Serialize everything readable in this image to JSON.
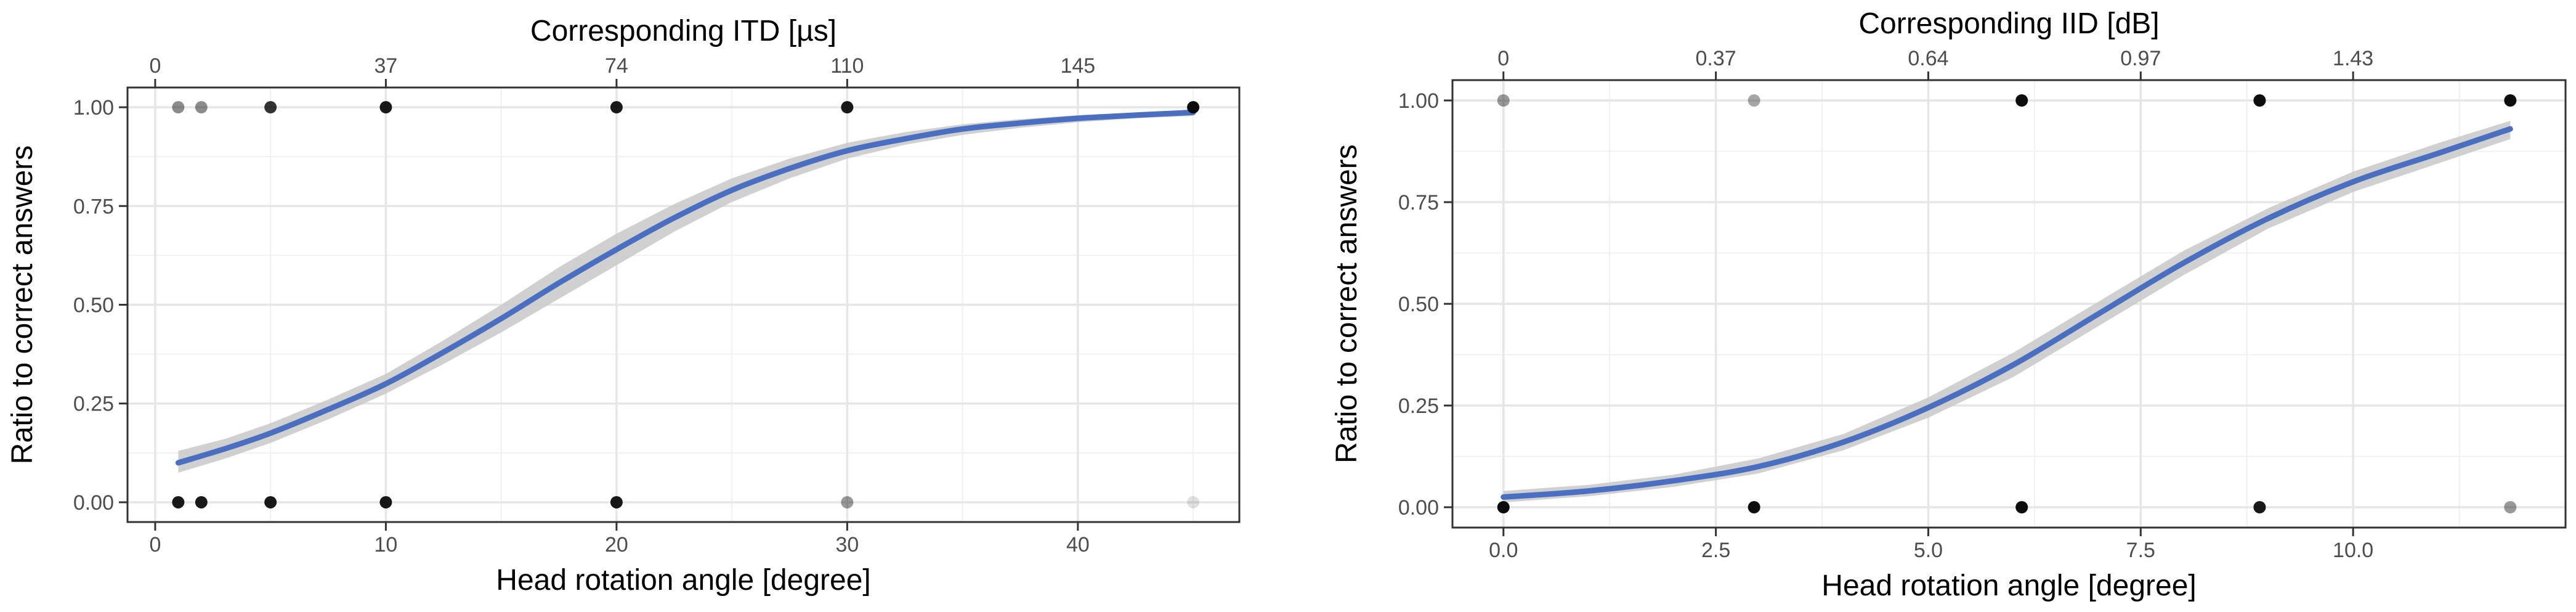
{
  "chart_data": [
    {
      "type": "scatter",
      "title": "",
      "xlabel": "Head rotation angle [degree]",
      "ylabel": "Ratio to correct answers",
      "top_axis_label": "Corresponding ITD [µs]",
      "xlim": [
        -1.2,
        47.0
      ],
      "ylim": [
        -0.05,
        1.05
      ],
      "x_ticks": [
        0,
        10,
        20,
        30,
        40
      ],
      "x_tick_labels": [
        "0",
        "10",
        "20",
        "30",
        "40"
      ],
      "top_ticks": [
        0,
        10,
        20,
        30,
        40
      ],
      "top_tick_labels": [
        "0",
        "37",
        "74",
        "110",
        "145"
      ],
      "y_ticks": [
        0,
        0.25,
        0.5,
        0.75,
        1.0
      ],
      "y_tick_labels": [
        "0.00",
        "0.25",
        "0.50",
        "0.75",
        "1.00"
      ],
      "grid": true,
      "points": [
        {
          "x": 1,
          "y": 1,
          "opacity": 0.45
        },
        {
          "x": 2,
          "y": 1,
          "opacity": 0.45
        },
        {
          "x": 5,
          "y": 1,
          "opacity": 0.8
        },
        {
          "x": 10,
          "y": 1,
          "opacity": 0.9
        },
        {
          "x": 20,
          "y": 1,
          "opacity": 0.9
        },
        {
          "x": 30,
          "y": 1,
          "opacity": 0.9
        },
        {
          "x": 45,
          "y": 1,
          "opacity": 0.95
        },
        {
          "x": 1,
          "y": 0,
          "opacity": 0.9
        },
        {
          "x": 2,
          "y": 0,
          "opacity": 0.9
        },
        {
          "x": 5,
          "y": 0,
          "opacity": 0.9
        },
        {
          "x": 10,
          "y": 0,
          "opacity": 0.9
        },
        {
          "x": 20,
          "y": 0,
          "opacity": 0.9
        },
        {
          "x": 30,
          "y": 0,
          "opacity": 0.4
        },
        {
          "x": 45,
          "y": 0,
          "opacity": 0.12
        }
      ],
      "fit_curve": {
        "x": [
          1,
          3,
          5,
          7.5,
          10,
          12.5,
          15,
          17.5,
          20,
          22.5,
          25,
          27.5,
          30,
          32.5,
          35,
          37.5,
          40,
          42.5,
          45
        ],
        "y": [
          0.1,
          0.135,
          0.175,
          0.235,
          0.3,
          0.38,
          0.465,
          0.555,
          0.64,
          0.72,
          0.79,
          0.845,
          0.89,
          0.92,
          0.945,
          0.96,
          0.972,
          0.98,
          0.987
        ],
        "ci_lower": [
          0.075,
          0.11,
          0.15,
          0.21,
          0.275,
          0.35,
          0.43,
          0.515,
          0.6,
          0.685,
          0.76,
          0.82,
          0.87,
          0.905,
          0.93,
          0.948,
          0.962,
          0.972,
          0.978
        ],
        "ci_upper": [
          0.13,
          0.16,
          0.2,
          0.26,
          0.325,
          0.41,
          0.5,
          0.595,
          0.68,
          0.755,
          0.82,
          0.87,
          0.91,
          0.937,
          0.957,
          0.97,
          0.98,
          0.987,
          0.993
        ]
      },
      "colors": {
        "line": "#4a6fc1",
        "band": "#c8c8c8",
        "point": "#000000"
      }
    },
    {
      "type": "scatter",
      "title": "",
      "xlabel": "Head rotation angle [degree]",
      "ylabel": "Ratio to correct answers",
      "top_axis_label": "Corresponding IID [dB]",
      "xlim": [
        -0.6,
        12.5
      ],
      "ylim": [
        -0.05,
        1.05
      ],
      "x_ticks": [
        0,
        2.5,
        5.0,
        7.5,
        10.0
      ],
      "x_tick_labels": [
        "0.0",
        "2.5",
        "5.0",
        "7.5",
        "10.0"
      ],
      "top_ticks": [
        0,
        2.5,
        5.0,
        7.5,
        10.0
      ],
      "top_tick_labels": [
        "0",
        "0.37",
        "0.64",
        "0.97",
        "1.43"
      ],
      "y_ticks": [
        0,
        0.25,
        0.5,
        0.75,
        1.0
      ],
      "y_tick_labels": [
        "0.00",
        "0.25",
        "0.50",
        "0.75",
        "1.00"
      ],
      "grid": true,
      "points": [
        {
          "x": 0,
          "y": 1,
          "opacity": 0.4
        },
        {
          "x": 2.95,
          "y": 1,
          "opacity": 0.35
        },
        {
          "x": 6.1,
          "y": 1,
          "opacity": 0.95
        },
        {
          "x": 8.9,
          "y": 1,
          "opacity": 0.95
        },
        {
          "x": 11.85,
          "y": 1,
          "opacity": 0.95
        },
        {
          "x": 0,
          "y": 0,
          "opacity": 0.95
        },
        {
          "x": 2.95,
          "y": 0,
          "opacity": 0.95
        },
        {
          "x": 6.1,
          "y": 0,
          "opacity": 0.95
        },
        {
          "x": 8.9,
          "y": 0,
          "opacity": 0.9
        },
        {
          "x": 11.85,
          "y": 0,
          "opacity": 0.4
        }
      ],
      "fit_curve": {
        "x": [
          0,
          1,
          2,
          3,
          4,
          5,
          6,
          7,
          8,
          9,
          10,
          11,
          11.85
        ],
        "y": [
          0.025,
          0.04,
          0.065,
          0.1,
          0.16,
          0.245,
          0.35,
          0.475,
          0.6,
          0.71,
          0.8,
          0.87,
          0.93
        ],
        "ci_lower": [
          0.012,
          0.027,
          0.05,
          0.083,
          0.14,
          0.22,
          0.32,
          0.445,
          0.57,
          0.685,
          0.775,
          0.845,
          0.905
        ],
        "ci_upper": [
          0.04,
          0.055,
          0.08,
          0.12,
          0.18,
          0.27,
          0.38,
          0.505,
          0.63,
          0.735,
          0.825,
          0.895,
          0.95
        ]
      },
      "colors": {
        "line": "#4a6fc1",
        "band": "#c8c8c8",
        "point": "#000000"
      }
    }
  ]
}
